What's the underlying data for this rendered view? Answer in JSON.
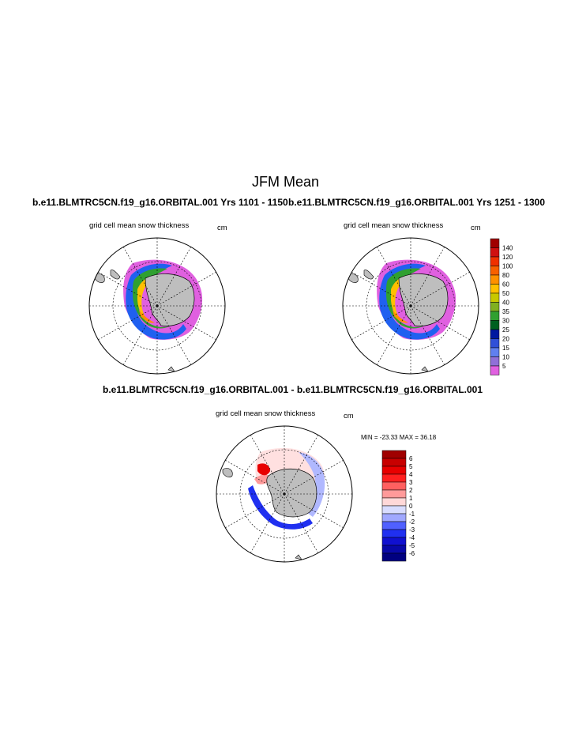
{
  "page": {
    "title": "JFM Mean"
  },
  "panels": [
    {
      "title": "b.e11.BLMTRC5CN.f19_g16.ORBITAL.001  Yrs 1101 - 1150",
      "field_label": "grid cell mean snow thickness",
      "units": "cm"
    },
    {
      "title": "b.e11.BLMTRC5CN.f19_g16.ORBITAL.001  Yrs 1251 - 1300",
      "field_label": "grid cell mean snow thickness",
      "units": "cm"
    },
    {
      "title": "b.e11.BLMTRC5CN.f19_g16.ORBITAL.001 - b.e11.BLMTRC5CN.f19_g16.ORBITAL.001",
      "field_label": "grid cell mean snow thickness",
      "units": "cm",
      "stats": "MIN = -23.33 MAX =  36.18"
    }
  ],
  "colorbar_top": {
    "labels": [
      "140",
      "120",
      "100",
      "80",
      "60",
      "50",
      "40",
      "35",
      "30",
      "25",
      "20",
      "15",
      "10",
      "5"
    ],
    "colors": [
      "#a00000",
      "#d01010",
      "#f03000",
      "#f86000",
      "#ff9000",
      "#ffc000",
      "#c8c800",
      "#80b020",
      "#30a030",
      "#006020",
      "#0018a0",
      "#3050d8",
      "#6080f0",
      "#9070d8",
      "#e060e0"
    ]
  },
  "colorbar_diff": {
    "labels": [
      "6",
      "5",
      "4",
      "3",
      "2",
      "1",
      "0",
      "-1",
      "-2",
      "-3",
      "-4",
      "-5",
      "-6"
    ],
    "colors": [
      "#a00000",
      "#c80000",
      "#e80000",
      "#ff2020",
      "#ff6060",
      "#ff9a9a",
      "#ffd8d8",
      "#d8dcff",
      "#a0a8ff",
      "#5060ff",
      "#2030f0",
      "#1010d0",
      "#0808a8",
      "#000080"
    ]
  }
}
